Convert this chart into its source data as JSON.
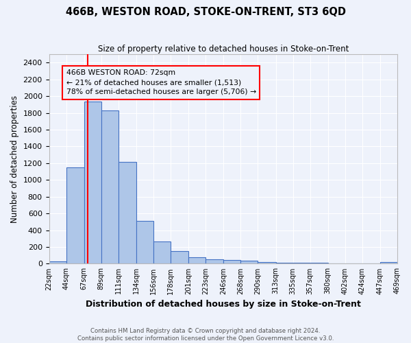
{
  "title": "466B, WESTON ROAD, STOKE-ON-TRENT, ST3 6QD",
  "subtitle": "Size of property relative to detached houses in Stoke-on-Trent",
  "xlabel": "Distribution of detached houses by size in Stoke-on-Trent",
  "ylabel": "Number of detached properties",
  "bar_edges": [
    22,
    44,
    67,
    89,
    111,
    134,
    156,
    178,
    201,
    223,
    246,
    268,
    290,
    313,
    335,
    357,
    380,
    402,
    424,
    447,
    469
  ],
  "bar_heights": [
    25,
    1150,
    1940,
    1830,
    1215,
    510,
    265,
    150,
    80,
    55,
    45,
    35,
    20,
    15,
    12,
    10,
    5,
    3,
    2,
    20
  ],
  "bar_color": "#aec6e8",
  "bar_edgecolor": "#4472c4",
  "tick_labels": [
    "22sqm",
    "44sqm",
    "67sqm",
    "89sqm",
    "111sqm",
    "134sqm",
    "156sqm",
    "178sqm",
    "201sqm",
    "223sqm",
    "246sqm",
    "268sqm",
    "290sqm",
    "313sqm",
    "335sqm",
    "357sqm",
    "380sqm",
    "402sqm",
    "424sqm",
    "447sqm",
    "469sqm"
  ],
  "red_line_x": 72,
  "annotation_text": "466B WESTON ROAD: 72sqm\n← 21% of detached houses are smaller (1,513)\n78% of semi-detached houses are larger (5,706) →",
  "ylim": [
    0,
    2500
  ],
  "yticks": [
    0,
    200,
    400,
    600,
    800,
    1000,
    1200,
    1400,
    1600,
    1800,
    2000,
    2200,
    2400
  ],
  "background_color": "#eef2fb",
  "grid_color": "#ffffff",
  "footer_line1": "Contains HM Land Registry data © Crown copyright and database right 2024.",
  "footer_line2": "Contains public sector information licensed under the Open Government Licence v3.0."
}
